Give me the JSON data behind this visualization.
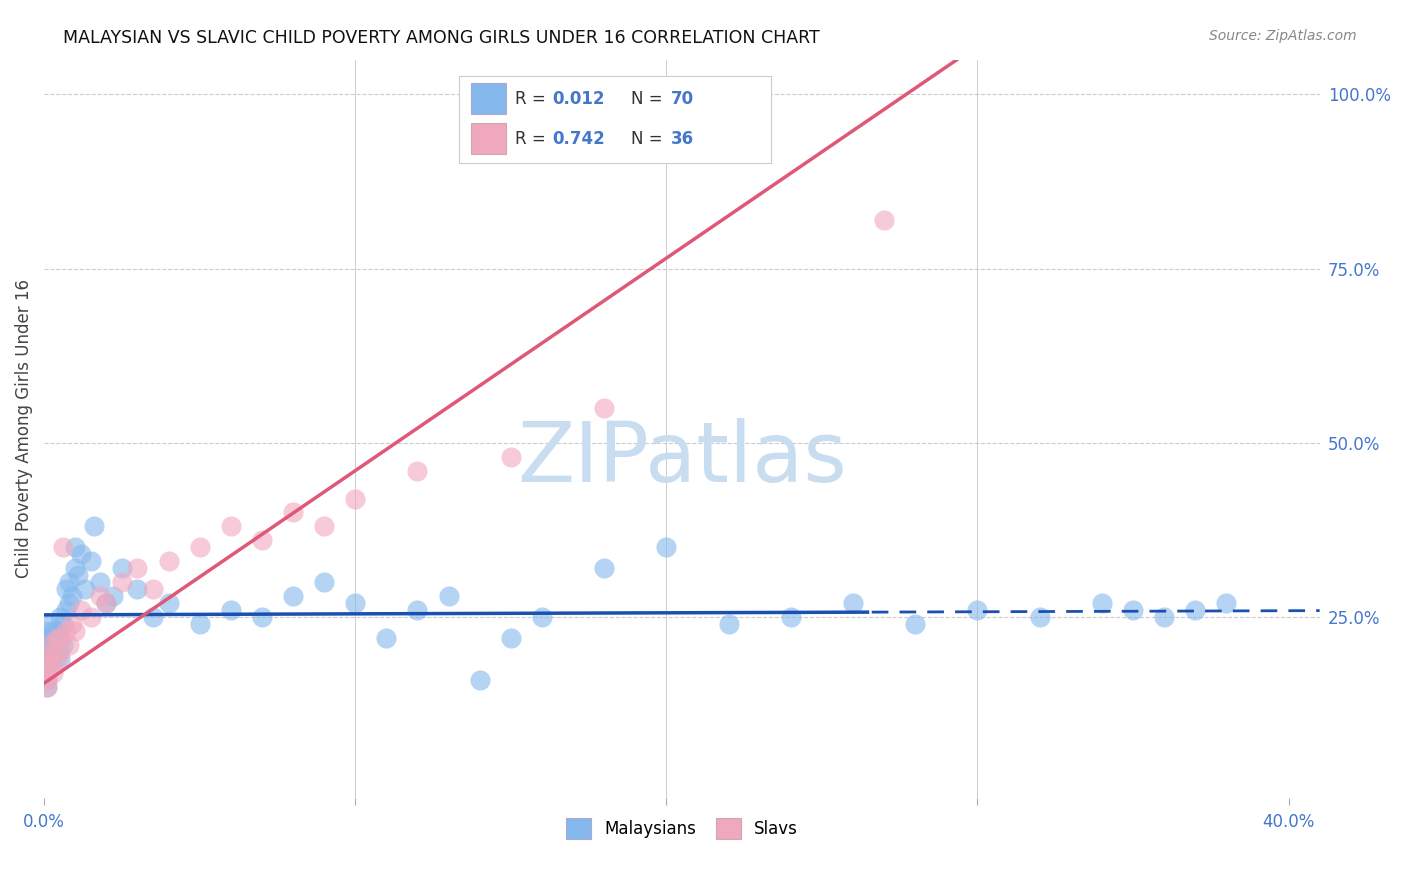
{
  "title": "MALAYSIAN VS SLAVIC CHILD POVERTY AMONG GIRLS UNDER 16 CORRELATION CHART",
  "source": "Source: ZipAtlas.com",
  "ylabel": "Child Poverty Among Girls Under 16",
  "xlim": [
    0.0,
    0.41
  ],
  "ylim": [
    -0.01,
    1.05
  ],
  "xticks": [
    0.0,
    0.1,
    0.2,
    0.3,
    0.4
  ],
  "xtick_labels": [
    "0.0%",
    "",
    "",
    "",
    "40.0%"
  ],
  "yticks_right": [
    0.25,
    0.5,
    0.75,
    1.0
  ],
  "ytick_labels_right": [
    "25.0%",
    "50.0%",
    "75.0%",
    "100.0%"
  ],
  "grid_color": "#cccccc",
  "bg_color": "#ffffff",
  "watermark": "ZIPatlas",
  "watermark_color": "#c8ddf0",
  "malaysian_color": "#85b8ed",
  "slav_color": "#f0a8be",
  "malaysian_line_color": "#1a50b0",
  "slav_line_color": "#e05878",
  "legend_label_malaysian": "Malaysians",
  "legend_label_slav": "Slavs",
  "tick_color": "#4477cc",
  "title_color": "#111111",
  "source_color": "#888888",
  "ylabel_color": "#444444",
  "mal_x": [
    0.001,
    0.001,
    0.001,
    0.001,
    0.001,
    0.001,
    0.001,
    0.001,
    0.001,
    0.002,
    0.002,
    0.002,
    0.002,
    0.002,
    0.003,
    0.003,
    0.003,
    0.003,
    0.004,
    0.004,
    0.004,
    0.005,
    0.005,
    0.005,
    0.006,
    0.006,
    0.007,
    0.007,
    0.008,
    0.008,
    0.009,
    0.01,
    0.01,
    0.011,
    0.012,
    0.013,
    0.015,
    0.016,
    0.018,
    0.02,
    0.022,
    0.025,
    0.03,
    0.035,
    0.04,
    0.05,
    0.06,
    0.07,
    0.08,
    0.09,
    0.1,
    0.11,
    0.12,
    0.13,
    0.14,
    0.15,
    0.16,
    0.18,
    0.2,
    0.22,
    0.24,
    0.26,
    0.28,
    0.3,
    0.32,
    0.34,
    0.35,
    0.36,
    0.37,
    0.38
  ],
  "mal_y": [
    0.19,
    0.21,
    0.23,
    0.2,
    0.18,
    0.22,
    0.17,
    0.16,
    0.15,
    0.2,
    0.22,
    0.19,
    0.24,
    0.21,
    0.2,
    0.23,
    0.19,
    0.22,
    0.21,
    0.2,
    0.23,
    0.25,
    0.22,
    0.19,
    0.24,
    0.21,
    0.29,
    0.26,
    0.3,
    0.27,
    0.28,
    0.32,
    0.35,
    0.31,
    0.34,
    0.29,
    0.33,
    0.38,
    0.3,
    0.27,
    0.28,
    0.32,
    0.29,
    0.25,
    0.27,
    0.24,
    0.26,
    0.25,
    0.28,
    0.3,
    0.27,
    0.22,
    0.26,
    0.28,
    0.16,
    0.22,
    0.25,
    0.32,
    0.35,
    0.24,
    0.25,
    0.27,
    0.24,
    0.26,
    0.25,
    0.27,
    0.26,
    0.25,
    0.26,
    0.27
  ],
  "slav_x": [
    0.001,
    0.001,
    0.001,
    0.001,
    0.002,
    0.002,
    0.002,
    0.003,
    0.003,
    0.004,
    0.004,
    0.005,
    0.005,
    0.006,
    0.007,
    0.008,
    0.009,
    0.01,
    0.012,
    0.015,
    0.018,
    0.02,
    0.025,
    0.03,
    0.035,
    0.04,
    0.05,
    0.06,
    0.07,
    0.08,
    0.09,
    0.1,
    0.12,
    0.15,
    0.18,
    0.27
  ],
  "slav_y": [
    0.17,
    0.18,
    0.16,
    0.15,
    0.19,
    0.21,
    0.18,
    0.2,
    0.17,
    0.22,
    0.19,
    0.22,
    0.2,
    0.35,
    0.23,
    0.21,
    0.24,
    0.23,
    0.26,
    0.25,
    0.28,
    0.27,
    0.3,
    0.32,
    0.29,
    0.33,
    0.35,
    0.38,
    0.36,
    0.4,
    0.38,
    0.42,
    0.46,
    0.48,
    0.55,
    0.82
  ],
  "mal_line_x0": 0.0,
  "mal_line_y0": 0.253,
  "mal_line_slope": 0.015,
  "slav_line_x0": 0.0,
  "slav_line_y0": 0.155,
  "slav_line_slope": 3.05,
  "mal_line_dashed_from": 0.265
}
